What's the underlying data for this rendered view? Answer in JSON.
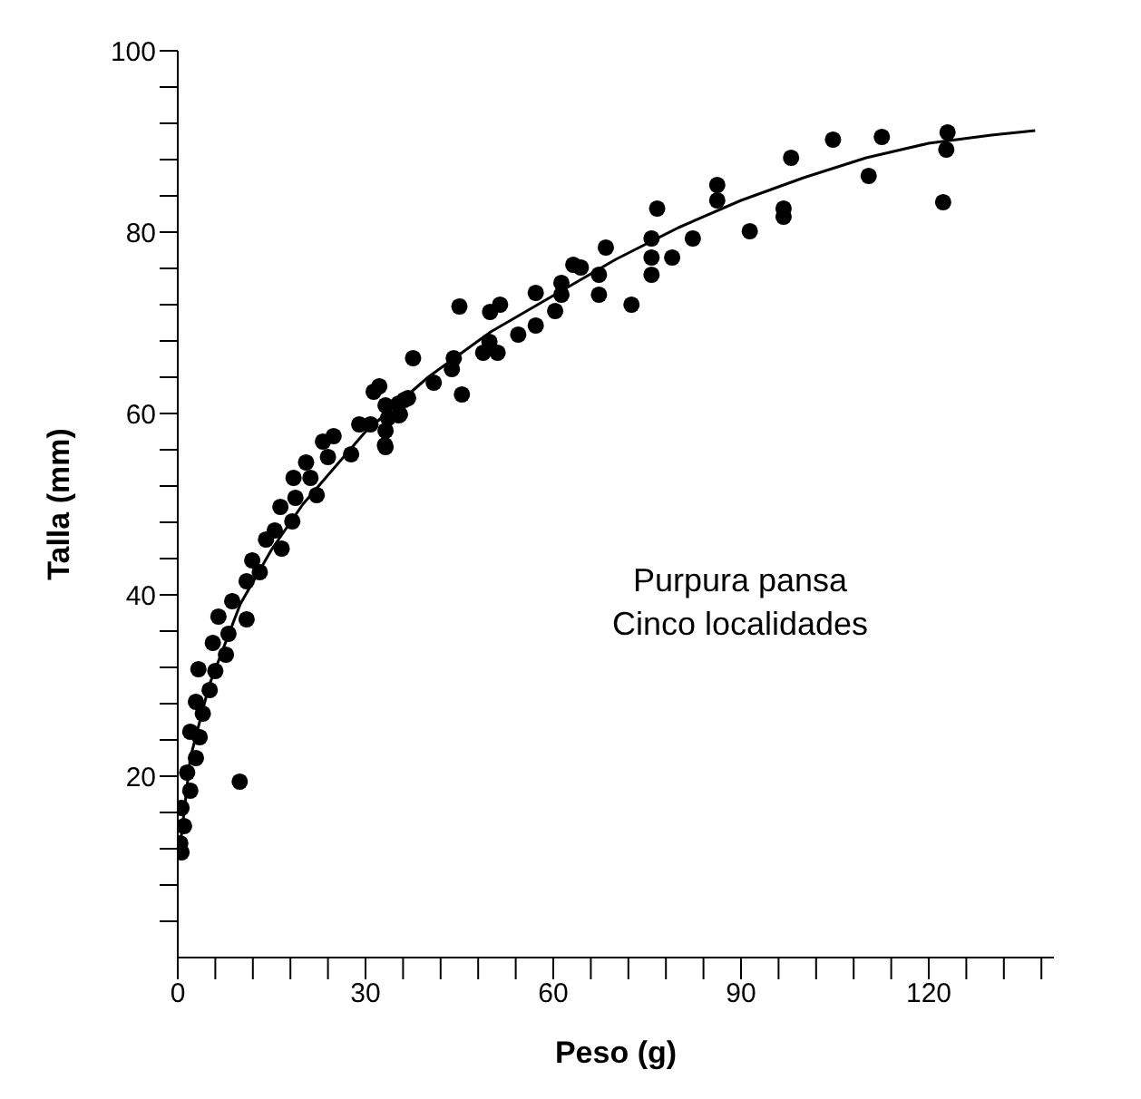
{
  "chart_data": {
    "type": "scatter",
    "xlabel": "Peso (g)",
    "ylabel": "Talla (mm)",
    "annotations": [
      "Purpura pansa",
      "Cinco localidades"
    ],
    "xlim": [
      0,
      140
    ],
    "xticks": [
      0,
      {
        "value": 6,
        "label": null
      },
      {
        "value": 12,
        "label": null
      },
      {
        "value": 18,
        "label": null
      },
      {
        "value": 24,
        "label": null
      },
      30,
      {
        "value": 36,
        "label": null
      },
      {
        "value": 42,
        "label": null
      },
      {
        "value": 48,
        "label": null
      },
      {
        "value": 54,
        "label": null
      },
      60,
      {
        "value": 66,
        "label": null
      },
      {
        "value": 72,
        "label": null
      },
      {
        "value": 78,
        "label": null
      },
      {
        "value": 84,
        "label": null
      },
      90,
      {
        "value": 96,
        "label": null
      },
      {
        "value": 102,
        "label": null
      },
      {
        "value": 108,
        "label": null
      },
      {
        "value": 114,
        "label": null
      },
      120,
      {
        "value": 126,
        "label": null
      },
      {
        "value": 132,
        "label": null
      },
      {
        "value": 138,
        "label": null
      }
    ],
    "ylim": [
      0,
      100
    ],
    "yticks": [
      {
        "value": 4,
        "label": null
      },
      {
        "value": 8,
        "label": null
      },
      {
        "value": 12,
        "label": null
      },
      {
        "value": 16,
        "label": null
      },
      20,
      {
        "value": 24,
        "label": null
      },
      {
        "value": 28,
        "label": null
      },
      {
        "value": 32,
        "label": null
      },
      {
        "value": 36,
        "label": null
      },
      40,
      {
        "value": 44,
        "label": null
      },
      {
        "value": 48,
        "label": null
      },
      {
        "value": 52,
        "label": null
      },
      {
        "value": 56,
        "label": null
      },
      60,
      {
        "value": 64,
        "label": null
      },
      {
        "value": 68,
        "label": null
      },
      {
        "value": 72,
        "label": null
      },
      {
        "value": 76,
        "label": null
      },
      80,
      {
        "value": 84,
        "label": null
      },
      {
        "value": 88,
        "label": null
      },
      {
        "value": 92,
        "label": null
      },
      {
        "value": 96,
        "label": null
      },
      100
    ],
    "grid": false,
    "series": [
      {
        "color": "#000000",
        "marker": "circle",
        "x": [
          123,
          122.8,
          122.3,
          112.5,
          110.4,
          104.7,
          98,
          96.8,
          96.8,
          91.4,
          86.2,
          86.2,
          82.3,
          79,
          76.6,
          75.7,
          75.7,
          75.7,
          72.5,
          68.4,
          67.3,
          67.3,
          63.2,
          64.4,
          61.3,
          61.3,
          60.3,
          57.2,
          57.2,
          54.4,
          51.5,
          49.9,
          45,
          49.8,
          51.1,
          48.8,
          44.1,
          43.8,
          45.4,
          40.9,
          37.6,
          36.8,
          35.3,
          35.3,
          33.2,
          32.2,
          33.2,
          33.2,
          31.3,
          36.2,
          33.6,
          30.8,
          33.1,
          35.5,
          29,
          27.7,
          24.9,
          23.2,
          24,
          20.5,
          18.5,
          21.2,
          22.2,
          18.8,
          16.4,
          18.3,
          15.5,
          14.1,
          16.6,
          11.9,
          13.1,
          11,
          8.7,
          11,
          6.5,
          8.1,
          5.6,
          7.7,
          3.3,
          6,
          5.1,
          2.9,
          4,
          2,
          3.5,
          2.9,
          1.5,
          2,
          0.6,
          1,
          0.4,
          0.6,
          9.9
        ],
        "values": [
          91,
          89.1,
          83.3,
          90.5,
          86.2,
          90.2,
          88.2,
          82.6,
          81.7,
          80.1,
          85.2,
          83.5,
          79.3,
          77.2,
          82.6,
          79.3,
          77.2,
          75.3,
          72,
          78.3,
          75.3,
          73.1,
          76.4,
          76.1,
          74.4,
          73.1,
          71.3,
          73.3,
          69.7,
          68.7,
          72,
          71.2,
          71.8,
          67.9,
          66.7,
          66.7,
          66.1,
          64.9,
          62.1,
          63.4,
          66.1,
          61.7,
          61.1,
          59.8,
          60.9,
          63,
          58.1,
          56.3,
          62.4,
          61.5,
          59.5,
          58.8,
          56.5,
          59.9,
          58.8,
          55.5,
          57.5,
          56.9,
          55.2,
          54.6,
          52.9,
          52.9,
          51,
          50.7,
          49.7,
          48.1,
          47.1,
          46.1,
          45.1,
          43.8,
          42.5,
          41.5,
          39.3,
          37.3,
          37.6,
          35.7,
          34.7,
          33.4,
          31.8,
          31.6,
          29.5,
          28.2,
          26.9,
          24.9,
          24.3,
          22,
          20.4,
          18.4,
          16.5,
          14.5,
          12.6,
          11.6,
          19.4
        ]
      },
      {
        "type": "line",
        "color": "#000000",
        "marker": "none",
        "line_style": "solid",
        "x": [
          0.5,
          2,
          5,
          10,
          15,
          20,
          30,
          40,
          50,
          60,
          70,
          80,
          90,
          100,
          110,
          120,
          130,
          137
        ],
        "values": [
          13,
          22,
          30,
          39,
          45,
          50,
          58,
          64,
          69,
          73,
          77,
          80.5,
          83.5,
          86,
          88.2,
          89.8,
          90.7,
          91.2
        ]
      }
    ]
  }
}
